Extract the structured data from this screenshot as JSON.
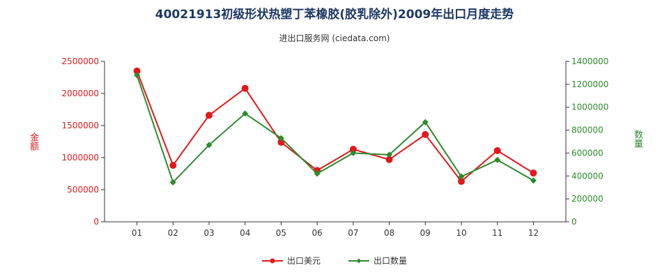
{
  "chart_data": {
    "type": "line",
    "title": "40021913初级形状热塑丁苯橡胶(胶乳除外)2009年出口月度走势",
    "subtitle": "进出口服务网 (ciedata.com)",
    "categories": [
      "01",
      "02",
      "03",
      "04",
      "05",
      "06",
      "07",
      "08",
      "09",
      "10",
      "11",
      "12"
    ],
    "y_left": {
      "label": "金额",
      "range": [
        0,
        2500000
      ],
      "ticks": [
        "0",
        "500000",
        "1000000",
        "1500000",
        "2000000",
        "2500000"
      ]
    },
    "y_right": {
      "label": "数量",
      "range": [
        0,
        1400000
      ],
      "ticks": [
        "0",
        "200000",
        "400000",
        "600000",
        "800000",
        "1000000",
        "1200000",
        "1400000"
      ]
    },
    "series": [
      {
        "name": "出口美元",
        "axis": "left",
        "color": "#e0191b",
        "values": [
          2350000,
          880000,
          1660000,
          2080000,
          1240000,
          800000,
          1130000,
          970000,
          1360000,
          630000,
          1110000,
          760000
        ]
      },
      {
        "name": "出口数量",
        "axis": "right",
        "color": "#2e8b2e",
        "values": [
          1280000,
          345000,
          670000,
          945000,
          730000,
          420000,
          600000,
          585000,
          870000,
          395000,
          540000,
          360000
        ]
      }
    ],
    "grid": false,
    "legend_position": "bottom"
  }
}
